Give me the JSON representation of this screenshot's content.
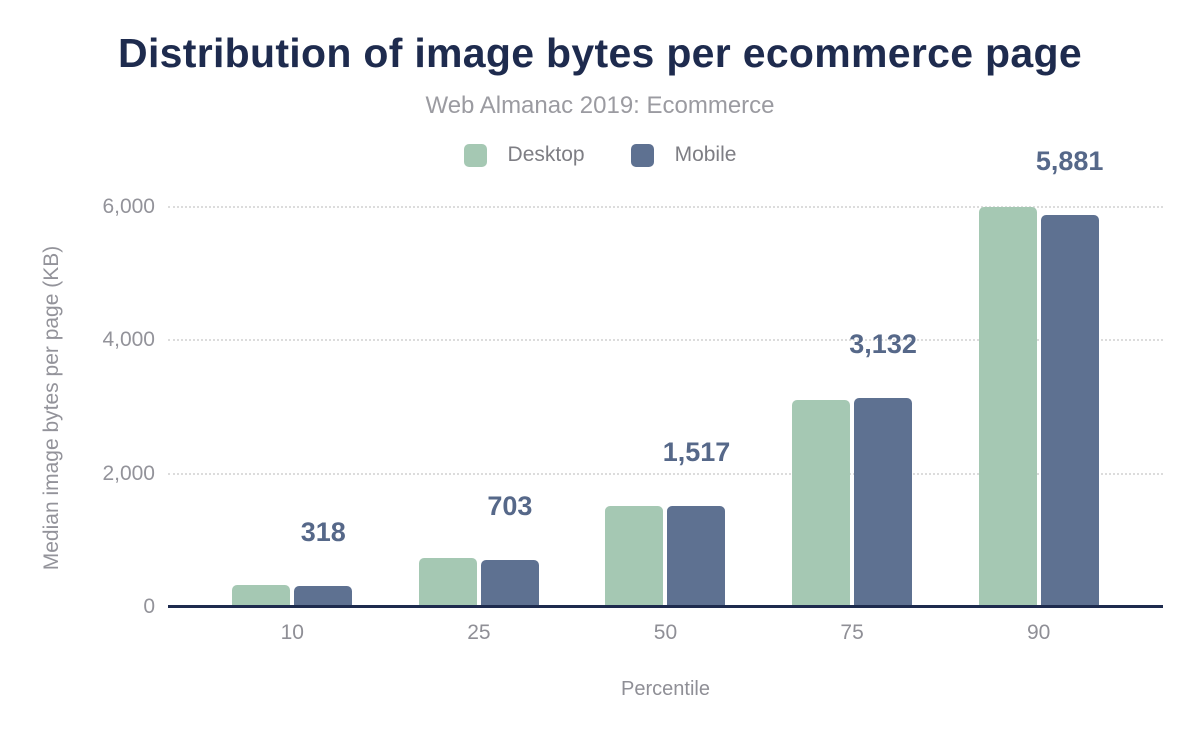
{
  "title": "Distribution of image bytes per ecommerce page",
  "subtitle": "Web Almanac 2019: Ecommerce",
  "legend": {
    "items": [
      {
        "label": "Desktop",
        "color": "#a5c8b3"
      },
      {
        "label": "Mobile",
        "color": "#5e7191"
      }
    ]
  },
  "palette": {
    "background": "#ffffff",
    "title_text": "#1e2b4e",
    "subtitle_text": "#9b9ba1",
    "axis_text": "#93939a",
    "legend_text": "#7e7e84",
    "gridline": "#dcdcdc",
    "axis_line": "#1e2b4e",
    "data_label_text": "#566889",
    "desktop_bar": "#a5c8b3",
    "mobile_bar": "#5e7191"
  },
  "chart_data": {
    "type": "bar",
    "title": "Distribution of image bytes per ecommerce page",
    "subtitle": "Web Almanac 2019: Ecommerce",
    "xlabel": "Percentile",
    "ylabel": "Median image bytes per page (KB)",
    "categories": [
      "10",
      "25",
      "50",
      "75",
      "90"
    ],
    "series": [
      {
        "name": "Desktop",
        "color": "#a5c8b3",
        "values": [
          328,
          735,
          1514,
          3104,
          5998
        ]
      },
      {
        "name": "Mobile",
        "color": "#5e7191",
        "values": [
          318,
          703,
          1517,
          3132,
          5881
        ]
      }
    ],
    "data_labels": {
      "series": "Mobile",
      "values": [
        "318",
        "703",
        "1,517",
        "3,132",
        "5,881"
      ]
    },
    "ylim": [
      0,
      6000
    ],
    "yticks": [
      {
        "value": 0,
        "label": "0"
      },
      {
        "value": 2000,
        "label": "2,000"
      },
      {
        "value": 4000,
        "label": "4,000"
      },
      {
        "value": 6000,
        "label": "6,000"
      }
    ],
    "grid": "horizontal-dotted",
    "legend_position": "top-center"
  }
}
